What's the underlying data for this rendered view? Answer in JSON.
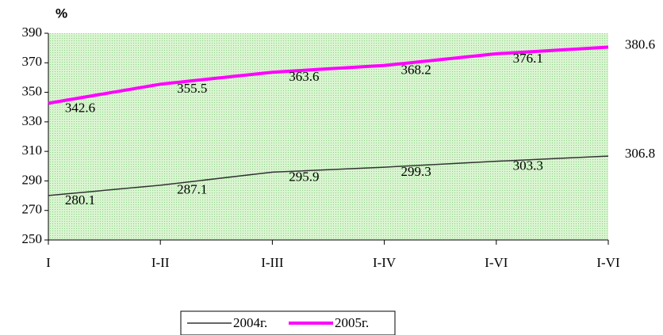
{
  "chart_data": {
    "type": "line",
    "y_label": "%",
    "categories": [
      "I",
      "I-II",
      "I-III",
      "I-IV",
      "I-VI",
      "I-VI"
    ],
    "series": [
      {
        "name": "2004г.",
        "color": "#333333",
        "values": [
          280.1,
          287.1,
          295.9,
          299.3,
          303.3,
          306.8
        ]
      },
      {
        "name": "2005г.",
        "color": "#ff00ff",
        "values": [
          342.6,
          355.5,
          363.6,
          368.2,
          376.1,
          380.6
        ]
      }
    ],
    "ylim": [
      250,
      390
    ],
    "yticks": [
      250,
      270,
      290,
      310,
      330,
      350,
      370,
      390
    ],
    "grid": false
  }
}
